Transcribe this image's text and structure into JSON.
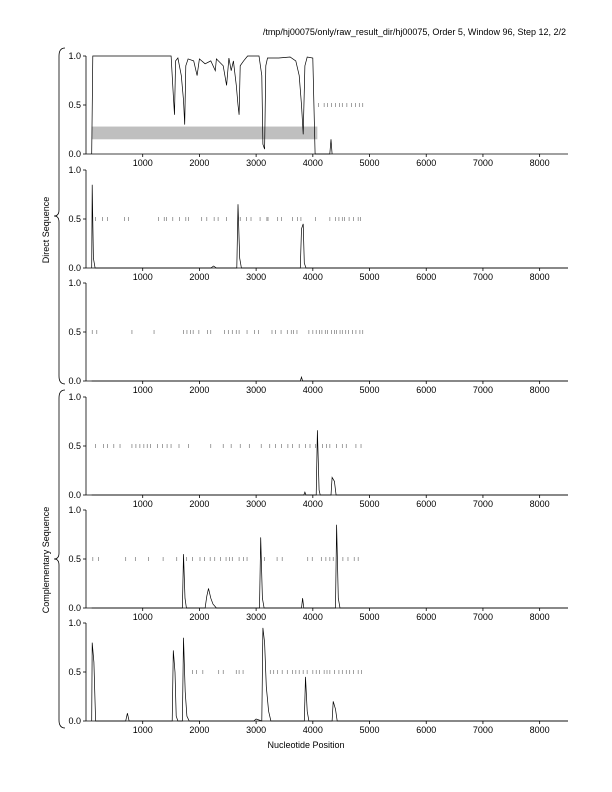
{
  "title": "/tmp/hj00075/only/raw_result_dir/hj00075, Order 5, Window 96, Step 12, 2/2",
  "group_labels": {
    "direct": "Direct Sequence",
    "complementary": "Complementary Sequence"
  },
  "chart_data": {
    "type": "line",
    "xlabel": "Nucleotide Position",
    "xlim": [
      0,
      8500
    ],
    "ylim": [
      0,
      1
    ],
    "xticks": [
      1000,
      2000,
      3000,
      4000,
      5000,
      6000,
      7000,
      8000
    ],
    "yticks": [
      0.0,
      0.5,
      1.0
    ],
    "panels": [
      {
        "group": "direct",
        "frame": 1,
        "segments": [
          [
            100,
            0.0
          ],
          [
            120,
            1.0
          ],
          [
            1500,
            1.0
          ],
          [
            1540,
            0.6
          ],
          [
            1560,
            0.4
          ],
          [
            1580,
            0.95
          ],
          [
            1620,
            0.98
          ],
          [
            1680,
            0.8
          ],
          [
            1720,
            0.55
          ],
          [
            1740,
            0.3
          ],
          [
            1760,
            0.9
          ],
          [
            1800,
            0.97
          ],
          [
            1900,
            0.95
          ],
          [
            1960,
            0.8
          ],
          [
            2000,
            0.97
          ],
          [
            2100,
            0.92
          ],
          [
            2200,
            0.95
          ],
          [
            2280,
            0.85
          ],
          [
            2300,
            0.97
          ],
          [
            2420,
            0.9
          ],
          [
            2480,
            0.7
          ],
          [
            2520,
            0.98
          ],
          [
            2560,
            0.85
          ],
          [
            2600,
            0.95
          ],
          [
            2650,
            0.7
          ],
          [
            2680,
            0.5
          ],
          [
            2700,
            0.4
          ],
          [
            2720,
            0.9
          ],
          [
            2780,
            0.95
          ],
          [
            2850,
            1.0
          ],
          [
            3050,
            1.0
          ],
          [
            3100,
            0.8
          ],
          [
            3120,
            0.1
          ],
          [
            3150,
            0.05
          ],
          [
            3170,
            0.9
          ],
          [
            3200,
            0.98
          ],
          [
            3400,
            0.98
          ],
          [
            3600,
            0.99
          ],
          [
            3700,
            0.95
          ],
          [
            3760,
            0.8
          ],
          [
            3800,
            0.5
          ],
          [
            3830,
            0.2
          ],
          [
            3860,
            0.9
          ],
          [
            3900,
            0.99
          ],
          [
            4000,
            0.98
          ],
          [
            4040,
            0.0
          ],
          [
            4300,
            0.0
          ],
          [
            4320,
            0.15
          ],
          [
            4340,
            0.0
          ]
        ],
        "orf_ticks": [
          4100,
          4200,
          4260,
          4330,
          4400,
          4470,
          4520,
          4600,
          4680,
          4750,
          4820,
          4880
        ],
        "orf_level": 0.5,
        "band": {
          "start": 100,
          "end": 4080,
          "low": 0.15,
          "high": 0.28
        }
      },
      {
        "group": "direct",
        "frame": 2,
        "segments": [
          [
            100,
            0.0
          ],
          [
            110,
            0.85
          ],
          [
            130,
            0.1
          ],
          [
            160,
            0.0
          ],
          [
            2200,
            0.0
          ],
          [
            2250,
            0.02
          ],
          [
            2300,
            0.0
          ],
          [
            2660,
            0.0
          ],
          [
            2680,
            0.65
          ],
          [
            2710,
            0.1
          ],
          [
            2740,
            0.0
          ],
          [
            3780,
            0.0
          ],
          [
            3800,
            0.4
          ],
          [
            3830,
            0.45
          ],
          [
            3850,
            0.05
          ],
          [
            3880,
            0.0
          ],
          [
            8500,
            0.0
          ]
        ],
        "orf_ticks": [
          170,
          290,
          380,
          680,
          750,
          1280,
          1380,
          1420,
          1530,
          1650,
          1760,
          1810,
          2040,
          2130,
          2260,
          2330,
          2480,
          2720,
          2830,
          2910,
          3070,
          3190,
          3210,
          3380,
          3450,
          3640,
          3730,
          3790,
          4050,
          4300,
          4400,
          4460,
          4520,
          4560,
          4640,
          4720,
          4800,
          4840
        ],
        "orf_level": 0.5
      },
      {
        "group": "direct",
        "frame": 3,
        "segments": [
          [
            100,
            0.0
          ],
          [
            3780,
            0.0
          ],
          [
            3800,
            0.04
          ],
          [
            3820,
            0.0
          ],
          [
            8500,
            0.0
          ]
        ],
        "orf_ticks": [
          110,
          190,
          810,
          1200,
          1720,
          1780,
          1840,
          1890,
          1990,
          2140,
          2200,
          2440,
          2510,
          2580,
          2650,
          2700,
          2840,
          2970,
          3040,
          3280,
          3340,
          3440,
          3550,
          3620,
          3660,
          3720,
          3930,
          4000,
          4060,
          4120,
          4160,
          4220,
          4260,
          4330,
          4380,
          4420,
          4480,
          4520,
          4580,
          4630,
          4700,
          4760,
          4830,
          4880
        ],
        "orf_level": 0.5
      },
      {
        "group": "complementary",
        "frame": 1,
        "segments": [
          [
            100,
            0.0
          ],
          [
            3840,
            0.0
          ],
          [
            3860,
            0.03
          ],
          [
            3880,
            0.0
          ],
          [
            4060,
            0.0
          ],
          [
            4080,
            0.66
          ],
          [
            4110,
            0.05
          ],
          [
            4130,
            0.0
          ],
          [
            4320,
            0.0
          ],
          [
            4340,
            0.18
          ],
          [
            4380,
            0.14
          ],
          [
            4410,
            0.0
          ],
          [
            8500,
            0.0
          ]
        ],
        "orf_ticks": [
          170,
          310,
          380,
          490,
          600,
          810,
          880,
          950,
          1020,
          1080,
          1140,
          1260,
          1350,
          1430,
          1500,
          1640,
          1810,
          2200,
          2420,
          2560,
          2720,
          2880,
          3090,
          3240,
          3340,
          3450,
          3560,
          3640,
          3760,
          3870,
          3950,
          4050,
          4170,
          4240,
          4300,
          4420,
          4520,
          4590,
          4760,
          4850
        ],
        "orf_level": 0.5
      },
      {
        "group": "complementary",
        "frame": 2,
        "segments": [
          [
            100,
            0.0
          ],
          [
            1700,
            0.0
          ],
          [
            1720,
            0.55
          ],
          [
            1745,
            0.1
          ],
          [
            1770,
            0.0
          ],
          [
            2100,
            0.0
          ],
          [
            2130,
            0.12
          ],
          [
            2160,
            0.2
          ],
          [
            2200,
            0.1
          ],
          [
            2240,
            0.04
          ],
          [
            2300,
            0.0
          ],
          [
            3060,
            0.0
          ],
          [
            3080,
            0.72
          ],
          [
            3110,
            0.1
          ],
          [
            3140,
            0.0
          ],
          [
            3800,
            0.0
          ],
          [
            3820,
            0.1
          ],
          [
            3840,
            0.0
          ],
          [
            4400,
            0.0
          ],
          [
            4420,
            0.85
          ],
          [
            4450,
            0.1
          ],
          [
            4480,
            0.0
          ],
          [
            8500,
            0.0
          ]
        ],
        "orf_ticks": [
          120,
          220,
          700,
          870,
          1100,
          1360,
          1600,
          1770,
          1880,
          2010,
          2090,
          2190,
          2270,
          2370,
          2470,
          2530,
          2580,
          2700,
          2780,
          2840,
          3150,
          3370,
          3460,
          3910,
          3990,
          4150,
          4230,
          4300,
          4360,
          4530,
          4620,
          4730,
          4800
        ],
        "orf_level": 0.5
      },
      {
        "group": "complementary",
        "frame": 3,
        "segments": [
          [
            100,
            0.0
          ],
          [
            110,
            0.8
          ],
          [
            140,
            0.6
          ],
          [
            170,
            0.0
          ],
          [
            700,
            0.0
          ],
          [
            730,
            0.08
          ],
          [
            760,
            0.0
          ],
          [
            1520,
            0.0
          ],
          [
            1540,
            0.72
          ],
          [
            1570,
            0.5
          ],
          [
            1590,
            0.05
          ],
          [
            1620,
            0.0
          ],
          [
            1700,
            0.0
          ],
          [
            1720,
            0.85
          ],
          [
            1750,
            0.3
          ],
          [
            1780,
            0.05
          ],
          [
            1820,
            0.0
          ],
          [
            2960,
            0.0
          ],
          [
            3000,
            0.02
          ],
          [
            3100,
            0.0
          ],
          [
            3120,
            0.95
          ],
          [
            3150,
            0.8
          ],
          [
            3180,
            0.35
          ],
          [
            3220,
            0.1
          ],
          [
            3260,
            0.0
          ],
          [
            3850,
            0.0
          ],
          [
            3870,
            0.45
          ],
          [
            3900,
            0.1
          ],
          [
            3930,
            0.0
          ],
          [
            4340,
            0.0
          ],
          [
            4360,
            0.2
          ],
          [
            4400,
            0.12
          ],
          [
            4430,
            0.0
          ],
          [
            8500,
            0.0
          ]
        ],
        "orf_ticks": [
          1880,
          1950,
          2060,
          2340,
          2420,
          2650,
          2700,
          2770,
          3250,
          3310,
          3380,
          3460,
          3550,
          3640,
          3700,
          3760,
          3830,
          3900,
          4000,
          4060,
          4120,
          4200,
          4250,
          4300,
          4380,
          4460,
          4520,
          4590,
          4650,
          4720,
          4800,
          4860
        ],
        "orf_level": 0.5
      }
    ]
  }
}
